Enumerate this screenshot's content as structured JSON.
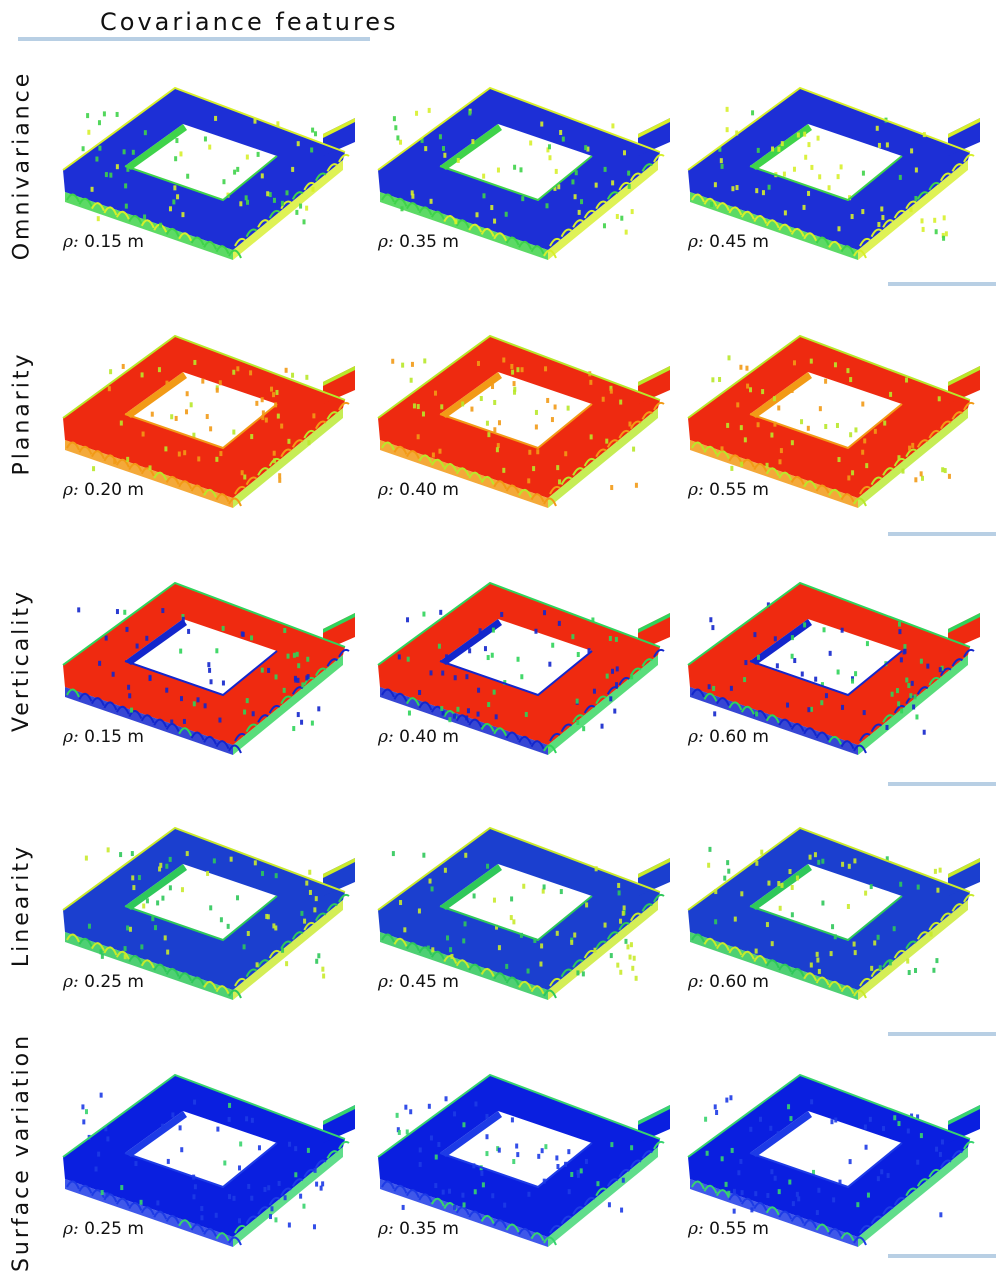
{
  "title": "Covariance features",
  "rho_symbol": "ρ:",
  "rows": [
    {
      "label": "Omnivariance",
      "colors": {
        "base": "#1d2fd6",
        "mid": "#3fd34a",
        "hi": "#d7ef2b"
      },
      "panels": [
        {
          "rho": "0.15 m",
          "mix": 0.45
        },
        {
          "rho": "0.35 m",
          "mix": 0.6
        },
        {
          "rho": "0.45 m",
          "mix": 0.75
        }
      ]
    },
    {
      "label": "Planarity",
      "colors": {
        "base": "#ee2a10",
        "mid": "#f29a16",
        "hi": "#b8e82a"
      },
      "panels": [
        {
          "rho": "0.20 m",
          "mix": 0.35
        },
        {
          "rho": "0.40 m",
          "mix": 0.45
        },
        {
          "rho": "0.55 m",
          "mix": 0.55
        }
      ]
    },
    {
      "label": "Verticality",
      "colors": {
        "base": "#ef2a10",
        "mid": "#1326cc",
        "hi": "#2fd45a"
      },
      "panels": [
        {
          "rho": "0.15 m",
          "mix": 0.35
        },
        {
          "rho": "0.40 m",
          "mix": 0.4
        },
        {
          "rho": "0.60 m",
          "mix": 0.45
        }
      ]
    },
    {
      "label": "Linearity",
      "colors": {
        "base": "#1b3fcf",
        "mid": "#2fc85a",
        "hi": "#c9ea2c"
      },
      "panels": [
        {
          "rho": "0.25 m",
          "mix": 0.45
        },
        {
          "rho": "0.45 m",
          "mix": 0.5
        },
        {
          "rho": "0.60 m",
          "mix": 0.55
        }
      ]
    },
    {
      "label": "Surface variation",
      "colors": {
        "base": "#0a1fe0",
        "mid": "#1d3be6",
        "hi": "#38d46e"
      },
      "panels": [
        {
          "rho": "0.25 m",
          "mix": 0.2
        },
        {
          "rho": "0.35 m",
          "mix": 0.25
        },
        {
          "rho": "0.55 m",
          "mix": 0.3
        }
      ]
    }
  ]
}
